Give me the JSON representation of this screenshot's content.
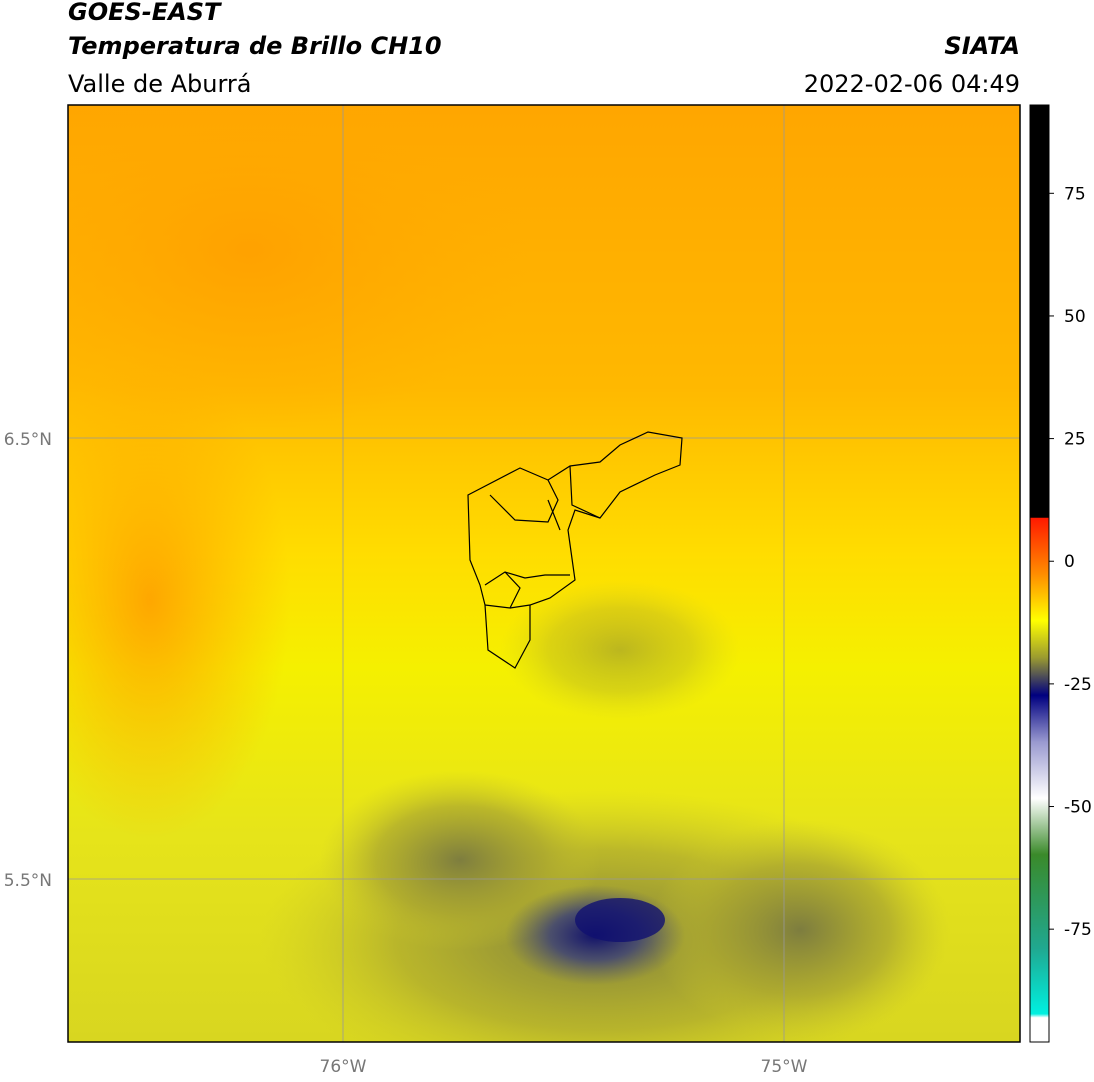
{
  "header": {
    "title": "GOES-EAST",
    "subtitle": "Temperatura de Brillo CH10",
    "region": "Valle de Aburrá",
    "source": "SIATA",
    "timestamp": "2022-02-06 04:49"
  },
  "map": {
    "lat_ticks": [
      "6.5°N",
      "5.5°N"
    ],
    "lon_ticks": [
      "76°W",
      "75°W"
    ]
  },
  "colorbar": {
    "range": [
      -98,
      93
    ],
    "ticks": [
      75,
      50,
      25,
      0,
      -25,
      -50,
      -75
    ]
  }
}
